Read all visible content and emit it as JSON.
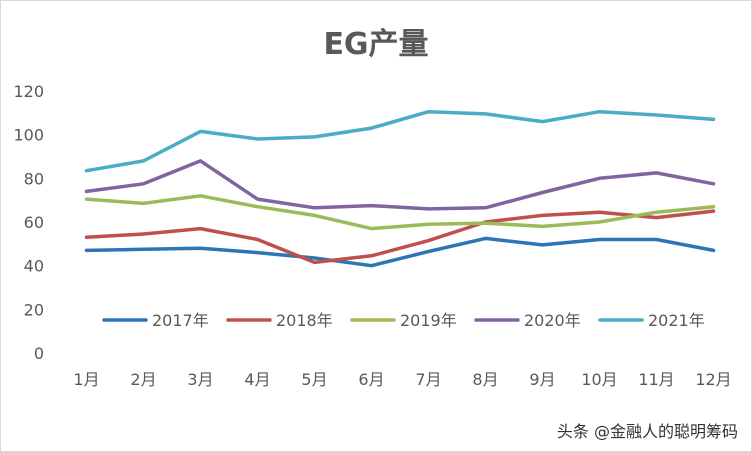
{
  "chart_data": {
    "type": "line",
    "title": "EG产量",
    "xlabel": "",
    "ylabel": "",
    "categories": [
      "1月",
      "2月",
      "3月",
      "4月",
      "5月",
      "6月",
      "7月",
      "8月",
      "9月",
      "10月",
      "11月",
      "12月"
    ],
    "ylim": [
      0,
      120
    ],
    "yticks": [
      "0",
      "20",
      "40",
      "60",
      "80",
      "100",
      "120"
    ],
    "grid": false,
    "legend_position": "bottom-inside",
    "series": [
      {
        "name": "2017年",
        "color": "#2e75b6",
        "values": [
          47,
          47.5,
          48,
          46,
          43.5,
          40,
          46.5,
          52.5,
          49.5,
          52,
          52,
          47
        ]
      },
      {
        "name": "2018年",
        "color": "#c0504d",
        "values": [
          53,
          54.5,
          57,
          52,
          41.5,
          44.5,
          51.5,
          60,
          63,
          64.5,
          62,
          65
        ]
      },
      {
        "name": "2019年",
        "color": "#9bbb59",
        "values": [
          70.5,
          68.5,
          72,
          67,
          63,
          57,
          59,
          59.5,
          58,
          60,
          64.5,
          67
        ]
      },
      {
        "name": "2020年",
        "color": "#8064a2",
        "values": [
          74,
          77.5,
          88,
          70.5,
          66.5,
          67.5,
          66,
          66.5,
          73.5,
          80,
          82.5,
          77.5
        ]
      },
      {
        "name": "2021年",
        "color": "#4bacc6",
        "values": [
          83.5,
          88,
          101.5,
          98,
          99,
          103,
          110.5,
          109.5,
          106,
          110.5,
          109,
          107
        ]
      }
    ]
  },
  "watermark": "头条 @金融人的聪明筹码"
}
